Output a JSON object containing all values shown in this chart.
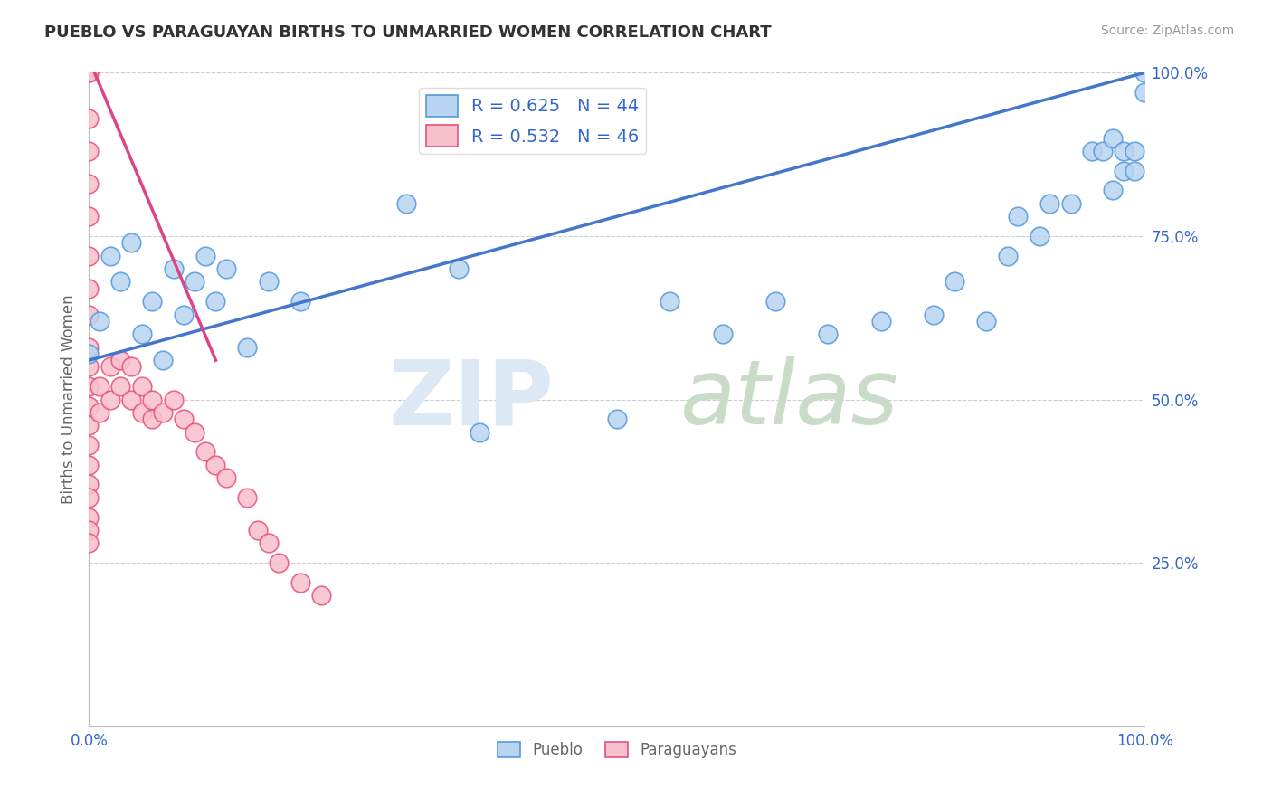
{
  "title": "PUEBLO VS PARAGUAYAN BIRTHS TO UNMARRIED WOMEN CORRELATION CHART",
  "source": "Source: ZipAtlas.com",
  "ylabel": "Births to Unmarried Women",
  "legend_pueblo": "R = 0.625   N = 44",
  "legend_paraguayan": "R = 0.532   N = 46",
  "pueblo_color": "#b8d4f0",
  "pueblo_edge_color": "#5599dd",
  "paraguayan_color": "#f8c0cc",
  "paraguayan_edge_color": "#e8507a",
  "pueblo_line_color": "#4477cc",
  "paraguayan_line_color": "#dd4488",
  "background_color": "#ffffff",
  "grid_color": "#cccccc",
  "title_color": "#333333",
  "axis_label_color": "#666666",
  "blue_text_color": "#3366cc",
  "source_color": "#999999",
  "xlim": [
    0.0,
    1.0
  ],
  "ylim": [
    0.0,
    1.0
  ],
  "yticks": [
    0.0,
    0.25,
    0.5,
    0.75,
    1.0
  ],
  "ytick_labels": [
    "",
    "25.0%",
    "50.0%",
    "75.0%",
    "100.0%"
  ],
  "pueblo_points_x": [
    0.0,
    0.01,
    0.02,
    0.03,
    0.04,
    0.05,
    0.06,
    0.07,
    0.08,
    0.09,
    0.1,
    0.11,
    0.12,
    0.13,
    0.15,
    0.17,
    0.2,
    0.3,
    0.35,
    0.37,
    0.5,
    0.55,
    0.6,
    0.65,
    0.7,
    0.75,
    0.8,
    0.82,
    0.85,
    0.87,
    0.88,
    0.9,
    0.91,
    0.93,
    0.95,
    0.96,
    0.97,
    0.97,
    0.98,
    0.98,
    0.99,
    0.99,
    1.0,
    1.0
  ],
  "pueblo_points_y": [
    0.57,
    0.62,
    0.72,
    0.68,
    0.74,
    0.6,
    0.65,
    0.56,
    0.7,
    0.63,
    0.68,
    0.72,
    0.65,
    0.7,
    0.58,
    0.68,
    0.65,
    0.8,
    0.7,
    0.45,
    0.47,
    0.65,
    0.6,
    0.65,
    0.6,
    0.62,
    0.63,
    0.68,
    0.62,
    0.72,
    0.78,
    0.75,
    0.8,
    0.8,
    0.88,
    0.88,
    0.9,
    0.82,
    0.88,
    0.85,
    0.88,
    0.85,
    0.97,
    1.0
  ],
  "paraguayan_points_x": [
    0.0,
    0.0,
    0.0,
    0.0,
    0.0,
    0.0,
    0.0,
    0.0,
    0.0,
    0.0,
    0.0,
    0.0,
    0.0,
    0.0,
    0.0,
    0.0,
    0.0,
    0.0,
    0.0,
    0.0,
    0.0,
    0.01,
    0.01,
    0.02,
    0.02,
    0.03,
    0.03,
    0.04,
    0.04,
    0.05,
    0.05,
    0.06,
    0.06,
    0.07,
    0.08,
    0.09,
    0.1,
    0.11,
    0.12,
    0.13,
    0.15,
    0.16,
    0.17,
    0.18,
    0.2,
    0.22
  ],
  "paraguayan_points_y": [
    1.0,
    1.0,
    0.93,
    0.88,
    0.83,
    0.78,
    0.72,
    0.67,
    0.63,
    0.58,
    0.55,
    0.52,
    0.49,
    0.46,
    0.43,
    0.4,
    0.37,
    0.35,
    0.32,
    0.3,
    0.28,
    0.52,
    0.48,
    0.55,
    0.5,
    0.56,
    0.52,
    0.55,
    0.5,
    0.52,
    0.48,
    0.5,
    0.47,
    0.48,
    0.5,
    0.47,
    0.45,
    0.42,
    0.4,
    0.38,
    0.35,
    0.3,
    0.28,
    0.25,
    0.22,
    0.2
  ],
  "pueblo_trend_x": [
    0.0,
    1.0
  ],
  "pueblo_trend_y": [
    0.56,
    1.0
  ],
  "paraguayan_trend_x": [
    0.0,
    0.12
  ],
  "paraguayan_trend_y": [
    1.02,
    0.56
  ]
}
